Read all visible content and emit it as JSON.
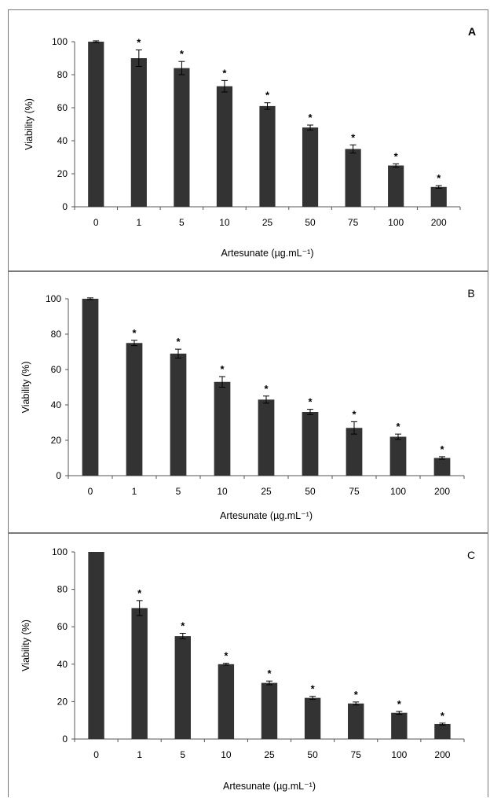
{
  "chart_data": [
    {
      "type": "bar",
      "panel_label": "A",
      "categories": [
        "0",
        "1",
        "5",
        "10",
        "25",
        "50",
        "75",
        "100",
        "200"
      ],
      "values": [
        100,
        90,
        84,
        73,
        61,
        48,
        35,
        25,
        12
      ],
      "errors": [
        0.5,
        5,
        4,
        3.5,
        2,
        1.5,
        2.5,
        1,
        0.8
      ],
      "significance": [
        "",
        "*",
        "*",
        "*",
        "*",
        "*",
        "*",
        "*",
        "*"
      ],
      "xlabel": "Artesunate (µg.mL⁻¹)",
      "ylabel": "Viability (%)",
      "ylim": [
        0,
        100
      ],
      "yticks": [
        0,
        20,
        40,
        60,
        80,
        100
      ],
      "bar_color": "#333333"
    },
    {
      "type": "bar",
      "panel_label": "B",
      "categories": [
        "0",
        "1",
        "5",
        "10",
        "25",
        "50",
        "75",
        "100",
        "200"
      ],
      "values": [
        100,
        75,
        69,
        53,
        43,
        36,
        27,
        22,
        10
      ],
      "errors": [
        0.5,
        1.5,
        2.5,
        3,
        2,
        1.5,
        3.5,
        1.5,
        0.7
      ],
      "significance": [
        "",
        "*",
        "*",
        "*",
        "*",
        "*",
        "*",
        "*",
        "*"
      ],
      "xlabel": "Artesunate (µg.mL⁻¹)",
      "ylabel": "Viability (%)",
      "ylim": [
        0,
        100
      ],
      "yticks": [
        0,
        20,
        40,
        60,
        80,
        100
      ],
      "bar_color": "#333333"
    },
    {
      "type": "bar",
      "panel_label": "C",
      "categories": [
        "0",
        "1",
        "5",
        "10",
        "25",
        "50",
        "75",
        "100",
        "200"
      ],
      "values": [
        100,
        70,
        55,
        40,
        30,
        22,
        19,
        14,
        8
      ],
      "errors": [
        0,
        4,
        1.5,
        0.5,
        1,
        0.8,
        0.8,
        0.8,
        0.5
      ],
      "significance": [
        "",
        "*",
        "*",
        "*",
        "*",
        "*",
        "*",
        "*",
        "*"
      ],
      "xlabel": "Artesunate (µg.mL⁻¹)",
      "ylabel": "Viability (%)",
      "ylim": [
        0,
        100
      ],
      "yticks": [
        0,
        20,
        40,
        60,
        80,
        100
      ],
      "bar_color": "#333333"
    }
  ]
}
